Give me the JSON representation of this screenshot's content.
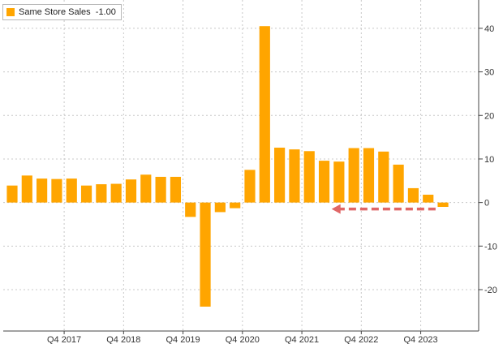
{
  "colors": {
    "bar": "#FFA500",
    "arrow": "#E06666",
    "grid": "#c8c8c8",
    "axis": "#444444"
  },
  "chart_data": {
    "type": "bar",
    "legend": {
      "label": "Same Store Sales",
      "last_value": "-1.00",
      "placement": "top-left"
    },
    "series": [
      {
        "name": "Same Store Sales",
        "values": [
          3.9,
          6.2,
          5.5,
          5.4,
          5.5,
          3.9,
          4.2,
          4.3,
          5.3,
          6.4,
          5.9,
          5.9,
          -3.3,
          -23.9,
          -2.2,
          -1.3,
          7.5,
          40.5,
          12.6,
          12.2,
          11.8,
          9.6,
          9.4,
          12.5,
          12.5,
          11.7,
          8.7,
          3.3,
          1.8,
          -1.0
        ]
      }
    ],
    "x_tick_labels": [
      {
        "label": "Q4 2017",
        "index": 3.5
      },
      {
        "label": "Q4 2018",
        "index": 7.5
      },
      {
        "label": "Q4 2019",
        "index": 11.5
      },
      {
        "label": "Q4 2020",
        "index": 15.5
      },
      {
        "label": "Q4 2021",
        "index": 19.5
      },
      {
        "label": "Q4 2022",
        "index": 23.5
      },
      {
        "label": "Q4 2023",
        "index": 27.5
      }
    ],
    "y_ticks": [
      -20,
      -10,
      0,
      10,
      20,
      30,
      40
    ],
    "ylim": [
      -29.5,
      46.5
    ],
    "grid": true,
    "annotation": {
      "type": "dashed-arrow",
      "direction": "left",
      "at_y": -1.5,
      "from_index": 28.5,
      "to_index": 21.5
    }
  }
}
